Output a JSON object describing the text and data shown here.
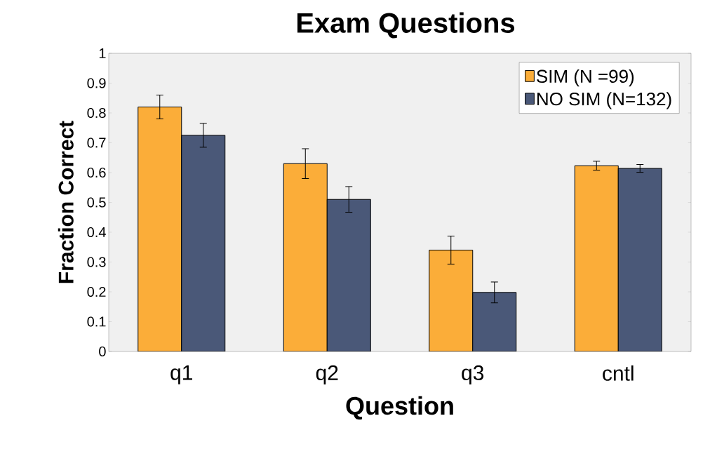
{
  "chart_data": {
    "type": "bar",
    "title": "Exam Questions",
    "xlabel": "Question",
    "ylabel": "Fraction Correct",
    "categories": [
      "q1",
      "q2",
      "q3",
      "cntl"
    ],
    "series": [
      {
        "name": "SIM (N =99)",
        "color": "#fbad39",
        "values": [
          0.82,
          0.63,
          0.34,
          0.623
        ],
        "errors": [
          0.04,
          0.05,
          0.047,
          0.015
        ]
      },
      {
        "name": "NO SIM (N=132)",
        "color": "#4a5878",
        "values": [
          0.725,
          0.51,
          0.198,
          0.614
        ],
        "errors": [
          0.04,
          0.043,
          0.035,
          0.013
        ]
      }
    ],
    "ylim": [
      0,
      1
    ],
    "yticks": [
      0,
      0.1,
      0.2,
      0.3,
      0.4,
      0.5,
      0.6,
      0.7,
      0.8,
      0.9,
      1
    ],
    "legend": "top right",
    "grid": false
  }
}
